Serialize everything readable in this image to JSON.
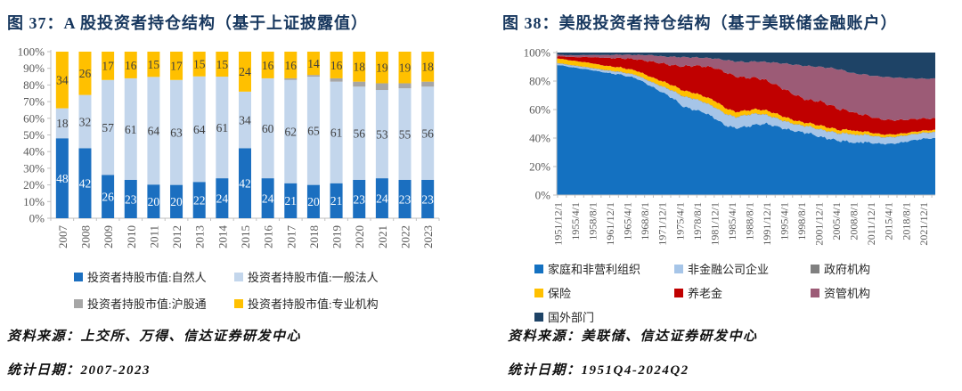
{
  "chart_data": [
    {
      "type": "bar",
      "stacked": true,
      "title": "图 37：A 股投资者持仓结构（基于上证披露值）",
      "source": "资料来源：上交所、万得、信达证券研发中心",
      "period": "统计日期：2007-2023",
      "ylabel": "",
      "xlabel": "",
      "ylim": [
        0,
        100
      ],
      "y_ticks": [
        "0%",
        "10%",
        "20%",
        "30%",
        "40%",
        "50%",
        "60%",
        "70%",
        "80%",
        "90%",
        "100%"
      ],
      "categories": [
        "2007",
        "2008",
        "2009",
        "2010",
        "2011",
        "2012",
        "2013",
        "2014",
        "2015",
        "2016",
        "2017",
        "2018",
        "2019",
        "2020",
        "2021",
        "2022",
        "2023"
      ],
      "series": [
        {
          "name": "投资者持股市值:自然人",
          "color": "#1B6FC0",
          "label_color": "#FFFFFF",
          "show_labels": true,
          "values": [
            48,
            42,
            26,
            23,
            20,
            20,
            22,
            24,
            42,
            24,
            21,
            20,
            21,
            23,
            24,
            23,
            23
          ]
        },
        {
          "name": "投资者持股市值:一般法人",
          "color": "#C3D6EC",
          "label_color": "#3F3F3F",
          "show_labels": true,
          "values": [
            18,
            32,
            57,
            61,
            64,
            63,
            64,
            61,
            34,
            60,
            62,
            65,
            61,
            56,
            53,
            55,
            56
          ]
        },
        {
          "name": "投资者持股市值:沪股通",
          "color": "#A6A6A6",
          "label_color": "#3F3F3F",
          "show_labels": false,
          "values": [
            0,
            0,
            0,
            0,
            0,
            0,
            0,
            0,
            0,
            0,
            1,
            1,
            2,
            3,
            4,
            3,
            3
          ]
        },
        {
          "name": "投资者持股市值:专业机构",
          "color": "#FFC000",
          "label_color": "#3F3F3F",
          "show_labels": true,
          "values": [
            34,
            26,
            17,
            16,
            15,
            17,
            15,
            15,
            24,
            16,
            16,
            14,
            16,
            18,
            19,
            19,
            18
          ]
        }
      ],
      "legend_columns": 2,
      "axis_color": "#BFBFBF",
      "tick_label_color": "#595959"
    },
    {
      "type": "area",
      "stacked": true,
      "normalized": true,
      "title": "图 38：美股投资者持仓结构（基于美联储金融账户）",
      "source": "资料来源：美联储、信达证券研发中心",
      "period": "统计日期：1951Q4-2024Q2",
      "ylim": [
        0,
        100
      ],
      "y_ticks": [
        "0%",
        "20%",
        "40%",
        "60%",
        "80%",
        "100%"
      ],
      "x_range": [
        1951.75,
        2024.25
      ],
      "x_tick_labels": [
        "1951/12/1",
        "1955/4/1",
        "1958/8/1",
        "1961/12/1",
        "1965/4/1",
        "1968/8/1",
        "1971/12/1",
        "1975/4/1",
        "1978/8/1",
        "1981/12/1",
        "1985/4/1",
        "1988/8/1",
        "1991/12/1",
        "1995/4/1",
        "1998/8/1",
        "2001/12/1",
        "2005/4/1",
        "2008/8/1",
        "2011/12/1",
        "2015/4/1",
        "2018/8/1",
        "2021/12/1"
      ],
      "x": [
        1951.75,
        1955,
        1958,
        1961,
        1964,
        1967,
        1970,
        1972,
        1974,
        1976,
        1978,
        1980,
        1982,
        1984,
        1986,
        1988,
        1990,
        1992,
        1994,
        1996,
        1998,
        2000,
        2002,
        2004,
        2006,
        2008,
        2009,
        2010,
        2012,
        2014,
        2016,
        2018,
        2020,
        2022,
        2024.25
      ],
      "series": [
        {
          "name": "家庭和非营利组织",
          "color": "#1471C1",
          "noise_amp": 1.3,
          "values": [
            91.5,
            89.5,
            88,
            86,
            84.5,
            82,
            76,
            72,
            68,
            62,
            60,
            58,
            54,
            49,
            47,
            48,
            49.5,
            50,
            48,
            46,
            44.5,
            43.5,
            41,
            39.5,
            38,
            37.5,
            36,
            37.5,
            36.5,
            36,
            36,
            37,
            38.5,
            39.5,
            40
          ]
        },
        {
          "name": "非金融公司企业",
          "color": "#A6C5E8",
          "noise_amp": 0.5,
          "values": [
            1.0,
            1.2,
            1.3,
            1.5,
            1.7,
            2.0,
            3.0,
            4.0,
            5.0,
            7.0,
            7.5,
            7.0,
            7.5,
            8.0,
            7.5,
            8.0,
            7.5,
            6.0,
            5.5,
            5.0,
            4.5,
            4.5,
            5.0,
            5.0,
            5.0,
            5.5,
            5.5,
            5.0,
            5.0,
            4.5,
            4.5,
            4.3,
            4.0,
            4.0,
            4.0
          ]
        },
        {
          "name": "政府机构",
          "color": "#808080",
          "noise_amp": 0.05,
          "values": [
            0.3,
            0.3,
            0.3,
            0.3,
            0.3,
            0.3,
            0.3,
            0.3,
            0.3,
            0.3,
            0.3,
            0.3,
            0.3,
            0.3,
            0.3,
            0.3,
            0.3,
            0.3,
            0.3,
            0.3,
            0.3,
            0.3,
            0.3,
            0.3,
            0.3,
            0.3,
            0.3,
            0.3,
            0.3,
            0.3,
            0.3,
            0.3,
            0.3,
            0.3,
            0.3
          ]
        },
        {
          "name": "保险",
          "color": "#FFC000",
          "noise_amp": 0.25,
          "values": [
            3.2,
            3.2,
            3.2,
            3.0,
            3.0,
            3.0,
            3.3,
            3.5,
            3.7,
            4.0,
            4.0,
            4.0,
            4.5,
            4.0,
            3.5,
            3.0,
            3.0,
            3.0,
            3.0,
            2.7,
            2.4,
            2.2,
            2.7,
            2.5,
            2.3,
            2.7,
            2.7,
            2.2,
            2.0,
            1.8,
            1.7,
            1.6,
            1.5,
            1.4,
            1.4
          ]
        },
        {
          "name": "养老金",
          "color": "#C00000",
          "noise_amp": 0.8,
          "values": [
            1.5,
            2.6,
            4.0,
            5.5,
            6.5,
            8.0,
            11,
            12.5,
            14,
            17,
            19,
            21,
            23,
            25,
            25,
            23,
            22,
            21,
            20,
            19,
            17.5,
            16,
            17,
            16,
            14.5,
            13,
            12.5,
            12,
            11,
            10.5,
            10,
            9.5,
            9,
            8.5,
            8
          ]
        },
        {
          "name": "资管机构",
          "color": "#9C5B76",
          "noise_amp": 0.8,
          "values": [
            1.0,
            1.2,
            1.5,
            2.0,
            2.5,
            3.0,
            4.5,
            5.0,
            6.0,
            6.5,
            5.8,
            6.0,
            6.5,
            8.5,
            10.5,
            11,
            11.5,
            13,
            16,
            19,
            22,
            24,
            24,
            26,
            28,
            27,
            28,
            28,
            29,
            30,
            30,
            29.5,
            28.5,
            28,
            28
          ]
        },
        {
          "name": "国外部门",
          "color": "#1E4366",
          "noise_amp": 0.45,
          "values": [
            1.5,
            2.0,
            1.7,
            1.7,
            1.5,
            1.7,
            1.9,
            2.7,
            3.0,
            3.2,
            3.4,
            3.7,
            4.2,
            5.2,
            6.2,
            6.7,
            6.2,
            6.7,
            7.2,
            8.0,
            8.8,
            9.5,
            10.0,
            10.7,
            11.9,
            14.0,
            15.0,
            15.0,
            16.2,
            16.9,
            17.5,
            17.8,
            18.2,
            18.3,
            18.3
          ]
        }
      ],
      "legend_columns": 3,
      "axis_color": "#BFBFBF",
      "tick_label_color": "#595959"
    }
  ]
}
